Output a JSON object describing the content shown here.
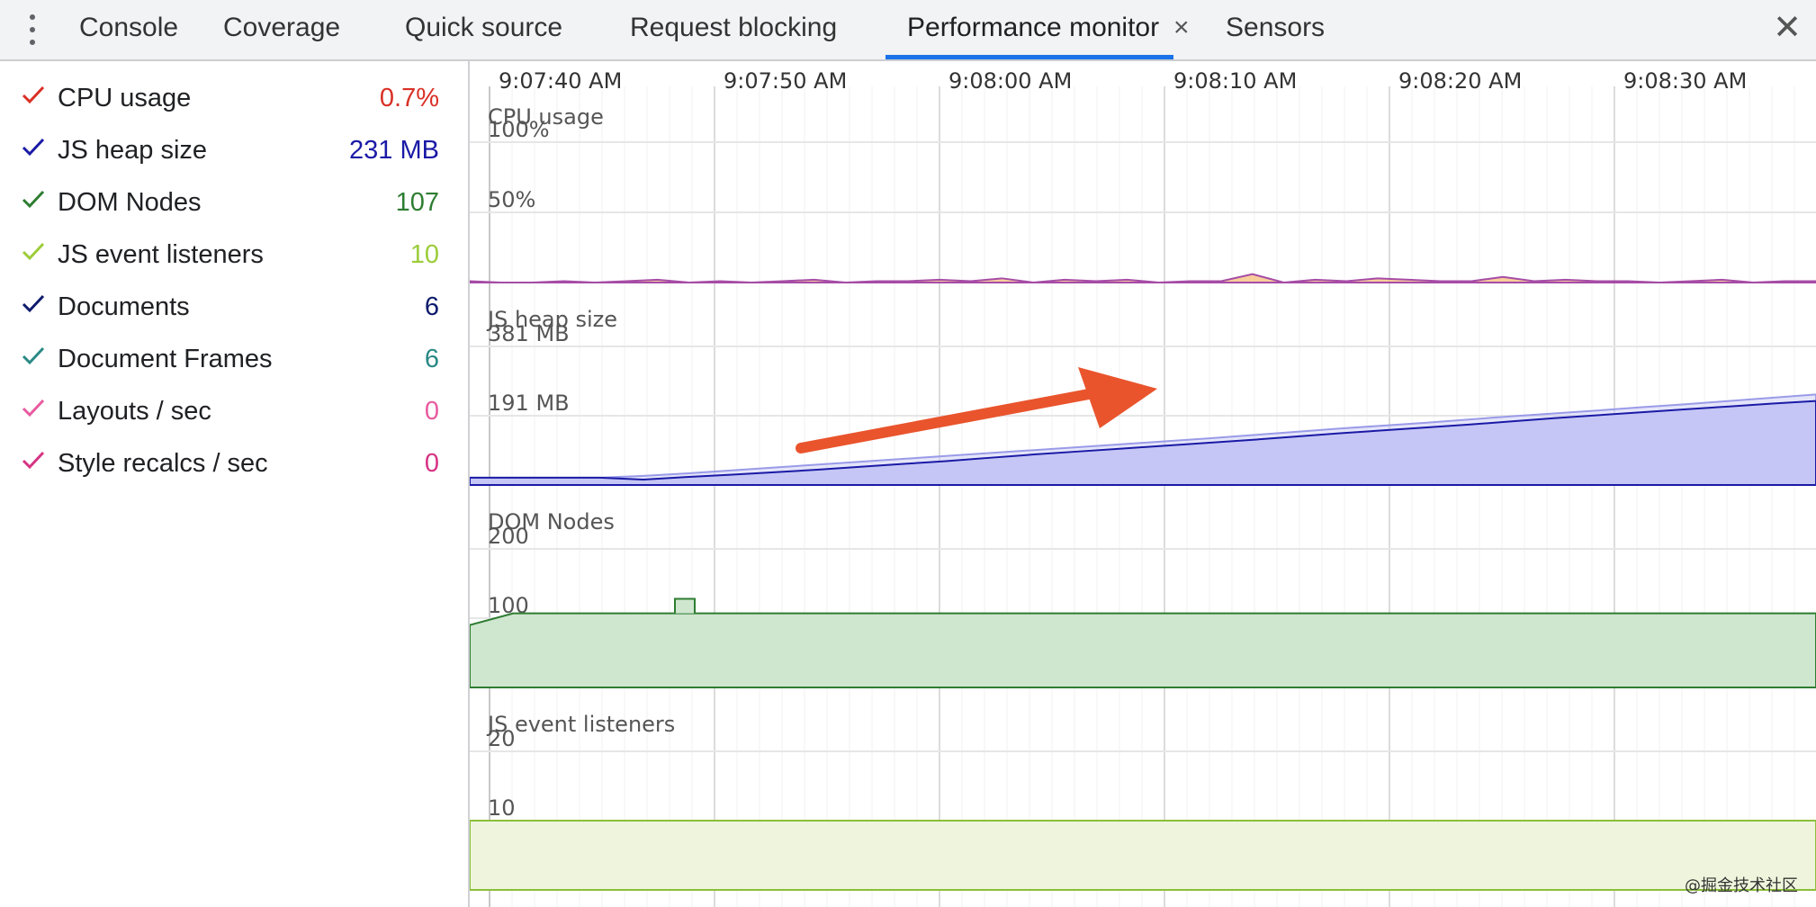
{
  "tabs": [
    {
      "label": "Console"
    },
    {
      "label": "Coverage"
    },
    {
      "label": "Quick source"
    },
    {
      "label": "Request blocking"
    },
    {
      "label": "Performance monitor",
      "active": true,
      "closable": true
    },
    {
      "label": "Sensors"
    }
  ],
  "icons": {
    "menu": "kebab-menu-icon",
    "tab_close": "×",
    "panel_close": "✕"
  },
  "metrics": [
    {
      "label": "CPU usage",
      "value": "0.7%",
      "color": "#d93025",
      "checked": true
    },
    {
      "label": "JS heap size",
      "value": "231 MB",
      "color": "#1a1aa6",
      "checked": true
    },
    {
      "label": "DOM Nodes",
      "value": "107",
      "color": "#2e7d32",
      "checked": true
    },
    {
      "label": "JS event listeners",
      "value": "10",
      "color": "#9ccc3a",
      "checked": true
    },
    {
      "label": "Documents",
      "value": "6",
      "color": "#0d1b6b",
      "checked": true
    },
    {
      "label": "Document Frames",
      "value": "6",
      "color": "#2a8a86",
      "checked": true
    },
    {
      "label": "Layouts / sec",
      "value": "0",
      "color": "#e85aa0",
      "checked": true
    },
    {
      "label": "Style recalcs / sec",
      "value": "0",
      "color": "#d63384",
      "checked": true
    }
  ],
  "timeline": {
    "labels": [
      "9:07:40 AM",
      "9:07:50 AM",
      "9:08:00 AM",
      "9:08:10 AM",
      "9:08:20 AM",
      "9:08:30 AM"
    ]
  },
  "chart_data": [
    {
      "type": "area",
      "title": "CPU usage",
      "ticks": [
        "100%",
        "50%"
      ],
      "ylim": [
        0,
        100
      ],
      "series": [
        {
          "values": [
            1,
            0,
            0,
            1,
            0,
            1,
            2,
            0,
            1,
            0,
            1,
            2,
            0,
            1,
            1,
            2,
            1,
            3,
            0,
            2,
            1,
            2,
            0,
            1,
            1,
            6,
            0,
            2,
            1,
            3,
            2,
            1,
            1,
            4,
            1,
            2,
            1,
            1,
            0,
            1,
            2,
            0,
            1,
            1
          ]
        }
      ],
      "colors": {
        "line": "#a64ca6",
        "fill": "#f5b971"
      }
    },
    {
      "type": "area",
      "title": "JS heap size",
      "ticks": [
        "381 MB",
        "191 MB"
      ],
      "ylim": [
        0,
        381
      ],
      "series": [
        {
          "values": [
            20,
            20,
            20,
            20,
            15,
            22,
            28,
            35,
            42,
            50,
            58,
            66,
            75,
            84,
            92,
            100,
            108,
            116,
            124,
            133,
            142,
            150,
            158,
            166,
            175,
            184,
            192,
            200,
            208,
            216,
            224,
            231
          ]
        },
        {
          "values": [
            20,
            20,
            20,
            20,
            25,
            32,
            40,
            48,
            56,
            64,
            72,
            80,
            88,
            96,
            104,
            112,
            120,
            128,
            137,
            146,
            155,
            163,
            171,
            180,
            189,
            197,
            205,
            214,
            222,
            231,
            240,
            249
          ]
        }
      ],
      "colors": {
        "line": "#1a1aa6",
        "fill": "#c5c6f5",
        "outline": "#9a9be8"
      }
    },
    {
      "type": "area",
      "title": "DOM Nodes",
      "ticks": [
        "200",
        "100"
      ],
      "ylim": [
        0,
        200
      ],
      "series": [
        {
          "values": [
            90,
            107,
            107,
            107,
            107,
            107,
            107,
            107,
            107,
            107,
            107,
            107,
            107,
            107,
            107,
            107,
            107,
            107,
            107,
            107,
            107,
            107,
            107,
            107,
            107,
            107,
            107,
            107,
            107,
            107,
            107,
            107
          ]
        }
      ],
      "spike": {
        "value": 128
      },
      "colors": {
        "line": "#2e7d32",
        "fill": "#cfe6cf"
      }
    },
    {
      "type": "area",
      "title": "JS event listeners",
      "ticks": [
        "20",
        "10"
      ],
      "ylim": [
        0,
        20
      ],
      "series": [
        {
          "values": [
            10,
            10,
            10,
            10,
            10,
            10,
            10,
            10,
            10,
            10,
            10,
            10,
            10,
            10,
            10,
            10,
            10,
            10,
            10,
            10,
            10,
            10,
            10,
            10,
            10,
            10,
            10,
            10,
            10,
            10,
            10,
            10
          ]
        }
      ],
      "colors": {
        "line": "#8bbf3a",
        "fill": "#eef5dc"
      }
    }
  ],
  "annotation": {
    "type": "arrow",
    "color": "#e9542d"
  },
  "watermark": "@掘金技术社区"
}
